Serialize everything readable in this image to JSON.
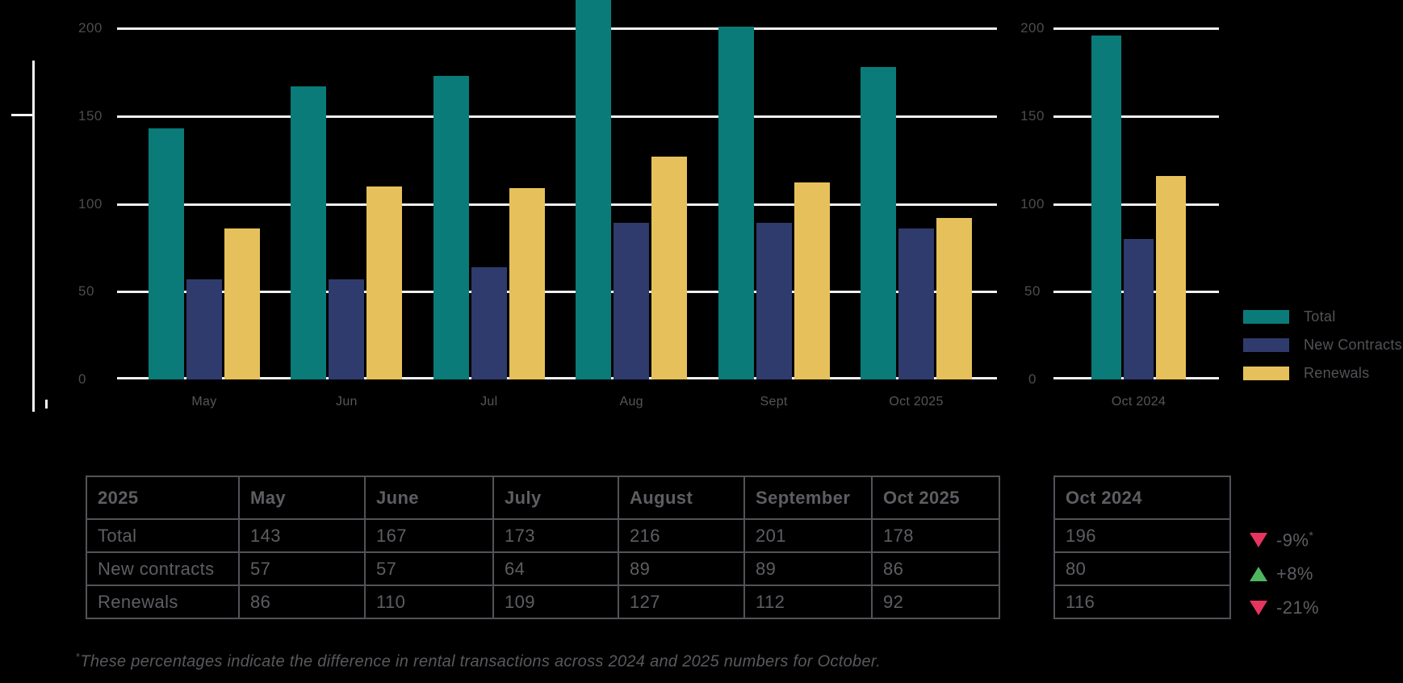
{
  "colors": {
    "background": "#000000",
    "total": "#0a7b78",
    "new_contracts": "#2f3b6c",
    "renewals": "#e6c15b",
    "gridline": "#f1f1f3",
    "down_indicator": "#e73560",
    "up_indicator": "#4eb65f"
  },
  "chart_data": [
    {
      "type": "bar",
      "title": "",
      "categories": [
        "May",
        "Jun",
        "Jul",
        "Aug",
        "Sept",
        "Oct 2025"
      ],
      "series": [
        {
          "name": "Total",
          "color_key": "total",
          "values": [
            143,
            167,
            173,
            216,
            201,
            178
          ]
        },
        {
          "name": "New Contracts",
          "color_key": "new_contracts",
          "values": [
            57,
            57,
            64,
            89,
            89,
            86
          ]
        },
        {
          "name": "Renewals",
          "color_key": "renewals",
          "values": [
            86,
            110,
            109,
            127,
            112,
            92
          ]
        }
      ],
      "xlabel": "",
      "ylabel": "",
      "ylim": [
        0,
        200
      ],
      "yticks": [
        0,
        50,
        100,
        150,
        200
      ],
      "grid": true,
      "legend_position": "right"
    },
    {
      "type": "bar",
      "title": "",
      "categories": [
        "Oct 2024"
      ],
      "series": [
        {
          "name": "Total",
          "color_key": "total",
          "values": [
            196
          ]
        },
        {
          "name": "New Contracts",
          "color_key": "new_contracts",
          "values": [
            80
          ]
        },
        {
          "name": "Renewals",
          "color_key": "renewals",
          "values": [
            116
          ]
        }
      ],
      "xlabel": "",
      "ylabel": "",
      "ylim": [
        0,
        200
      ],
      "yticks": [
        0,
        50,
        100,
        150,
        200
      ],
      "grid": true,
      "legend_position": "right"
    }
  ],
  "legend": {
    "items": [
      {
        "label": "Total",
        "color_key": "total"
      },
      {
        "label": "New Contracts",
        "color_key": "new_contracts"
      },
      {
        "label": "Renewals",
        "color_key": "renewals"
      }
    ]
  },
  "main_table": {
    "header": [
      "2025",
      "May",
      "June",
      "July",
      "August",
      "September",
      "Oct 2025"
    ],
    "rows": [
      {
        "label": "Total",
        "values": [
          "143",
          "167",
          "173",
          "216",
          "201",
          "178"
        ]
      },
      {
        "label": "New contracts",
        "values": [
          "57",
          "57",
          "64",
          "89",
          "89",
          "86"
        ]
      },
      {
        "label": "Renewals",
        "values": [
          "86",
          "110",
          "109",
          "127",
          "112",
          "92"
        ]
      }
    ]
  },
  "side_table": {
    "header": "Oct 2024",
    "values": [
      "196",
      "80",
      "116"
    ]
  },
  "indicators": [
    {
      "direction": "down",
      "text": "-9%",
      "superscript": "*"
    },
    {
      "direction": "up",
      "text": "+8%",
      "superscript": ""
    },
    {
      "direction": "down",
      "text": "-21%",
      "superscript": ""
    }
  ],
  "footnote": {
    "superscript": "*",
    "text": "These percentages indicate the difference in rental transactions across 2024 and 2025 numbers for October."
  }
}
